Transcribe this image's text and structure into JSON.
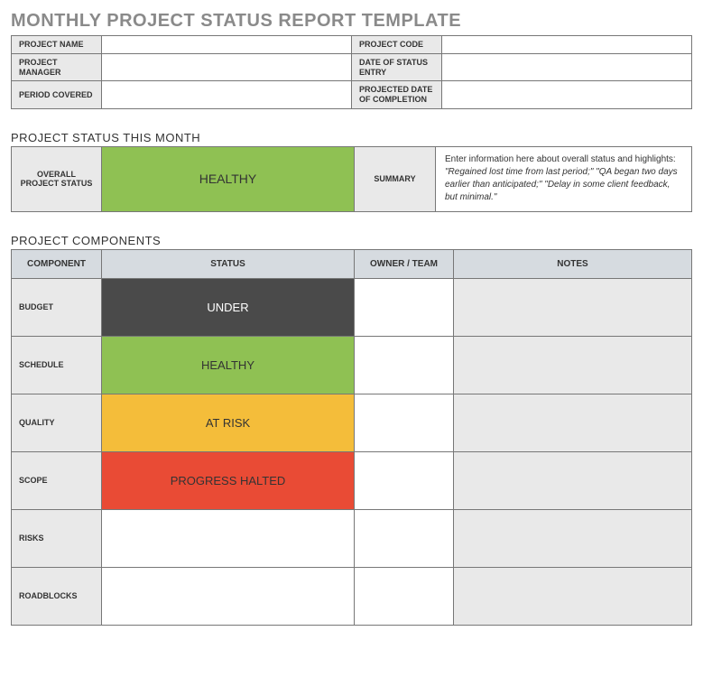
{
  "title": "MONTHLY PROJECT STATUS REPORT TEMPLATE",
  "colors": {
    "title_text": "#8a8a8a",
    "border": "#777777",
    "header_bg": "#d6dbe0",
    "label_bg": "#e9e9e9",
    "notes_bg": "#e9e9e9",
    "value_bg": "#ffffff",
    "status_healthy": "#8fc153",
    "status_under": "#4a4a4a",
    "status_atrisk": "#f4bd3a",
    "status_halted": "#e94b35"
  },
  "meta": {
    "rows": [
      [
        {
          "label": "PROJECT NAME",
          "value": ""
        },
        {
          "label": "PROJECT CODE",
          "value": ""
        }
      ],
      [
        {
          "label": "PROJECT MANAGER",
          "value": ""
        },
        {
          "label": "DATE OF STATUS ENTRY",
          "value": ""
        }
      ],
      [
        {
          "label": "PERIOD COVERED",
          "value": ""
        },
        {
          "label": "PROJECTED DATE OF COMPLETION",
          "value": ""
        }
      ]
    ]
  },
  "status_section": {
    "heading": "PROJECT STATUS THIS MONTH",
    "overall_label": "OVERALL PROJECT STATUS",
    "overall_status": "HEALTHY",
    "overall_status_bg": "#8fc153",
    "overall_status_text": "#333333",
    "summary_label": "SUMMARY",
    "summary_lead": "Enter information here about overall status and highlights: ",
    "summary_text": "\"Regained lost time from last period;\" \"QA began two days earlier than anticipated;\" \"Delay in some client feedback, but minimal.\""
  },
  "components_section": {
    "heading": "PROJECT COMPONENTS",
    "columns": [
      "COMPONENT",
      "STATUS",
      "OWNER / TEAM",
      "NOTES"
    ],
    "rows": [
      {
        "label": "BUDGET",
        "status": "UNDER",
        "status_bg": "#4a4a4a",
        "status_fg": "#ffffff",
        "owner": "",
        "notes": ""
      },
      {
        "label": "SCHEDULE",
        "status": "HEALTHY",
        "status_bg": "#8fc153",
        "status_fg": "#333333",
        "owner": "",
        "notes": ""
      },
      {
        "label": "QUALITY",
        "status": "AT RISK",
        "status_bg": "#f4bd3a",
        "status_fg": "#333333",
        "owner": "",
        "notes": ""
      },
      {
        "label": "SCOPE",
        "status": "PROGRESS HALTED",
        "status_bg": "#e94b35",
        "status_fg": "#333333",
        "owner": "",
        "notes": ""
      },
      {
        "label": "RISKS",
        "status": "",
        "status_bg": "#ffffff",
        "status_fg": "#333333",
        "owner": "",
        "notes": ""
      },
      {
        "label": "ROADBLOCKS",
        "status": "",
        "status_bg": "#ffffff",
        "status_fg": "#333333",
        "owner": "",
        "notes": ""
      }
    ]
  }
}
